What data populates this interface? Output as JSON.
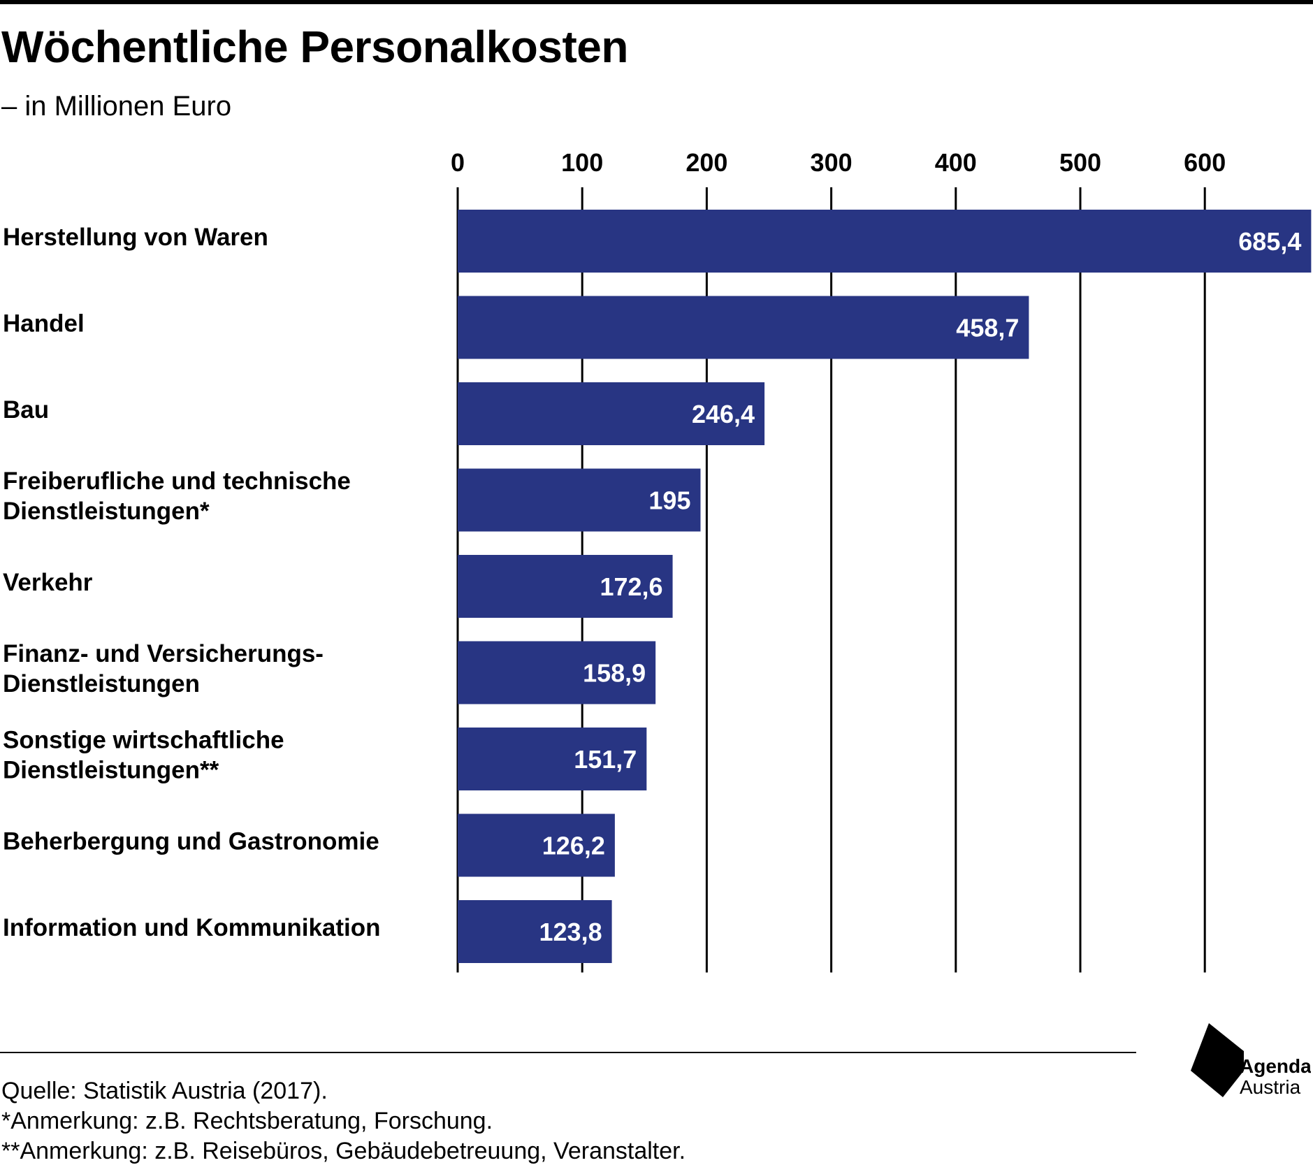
{
  "header": {
    "title": "Wöchentliche Personalkosten",
    "subtitle": "– in Millionen Euro"
  },
  "chart_data": {
    "type": "bar",
    "orientation": "horizontal",
    "categories": [
      [
        "Herstellung von Waren"
      ],
      [
        "Handel"
      ],
      [
        "Bau"
      ],
      [
        "Freiberufliche und technische",
        "Dienstleistungen*"
      ],
      [
        "Verkehr"
      ],
      [
        "Finanz- und Versicherungs-",
        "Dienstleistungen"
      ],
      [
        "Sonstige wirtschaftliche",
        "Dienstleistungen**"
      ],
      [
        "Beherbergung und Gastronomie"
      ],
      [
        "Information und Kommunikation"
      ]
    ],
    "values": [
      685.4,
      458.7,
      246.4,
      195,
      172.6,
      158.9,
      151.7,
      126.2,
      123.8
    ],
    "value_labels": [
      "685,4",
      "458,7",
      "246,4",
      "195",
      "172,6",
      "158,9",
      "151,7",
      "126,2",
      "123,8"
    ],
    "xticks": [
      0,
      100,
      200,
      300,
      400,
      500,
      600
    ],
    "xlim": [
      0,
      685.4
    ],
    "axis_position": "top",
    "grid": true,
    "bar_color": "#283583",
    "label_color": "#ffffff",
    "title": "Wöchentliche Personalkosten",
    "xlabel": "",
    "ylabel": ""
  },
  "footer": {
    "source": "Quelle: Statistik Austria (2017).",
    "note1": "*Anmerkung: z.B. Rechtsberatung, Forschung.",
    "note2": "**Anmerkung: z.B. Reisebüros, Gebäudebetreuung, Veranstalter."
  },
  "logo": {
    "icon": "agenda-austria-logo-mark",
    "line1": "Agenda",
    "line2": "Austria"
  }
}
